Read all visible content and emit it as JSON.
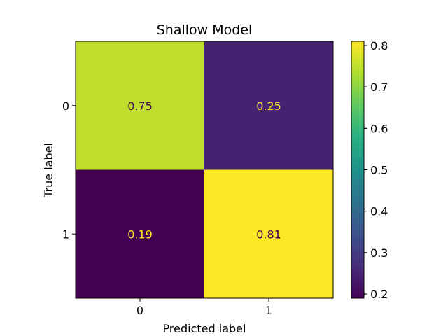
{
  "chart_data": {
    "type": "heatmap",
    "title": "Shallow Model",
    "xlabel": "Predicted label",
    "ylabel": "True label",
    "x_categories": [
      "0",
      "1"
    ],
    "y_categories": [
      "0",
      "1"
    ],
    "values": [
      [
        0.75,
        0.25
      ],
      [
        0.19,
        0.81
      ]
    ],
    "cell_labels": [
      [
        "0.75",
        "0.25"
      ],
      [
        "0.19",
        "0.81"
      ]
    ],
    "colormap": "viridis",
    "colorbar": {
      "range": [
        0.19,
        0.81
      ],
      "ticks": [
        0.2,
        0.3,
        0.4,
        0.5,
        0.6,
        0.7,
        0.8
      ],
      "tick_labels": [
        "0.2",
        "0.3",
        "0.4",
        "0.5",
        "0.6",
        "0.7",
        "0.8"
      ]
    }
  }
}
